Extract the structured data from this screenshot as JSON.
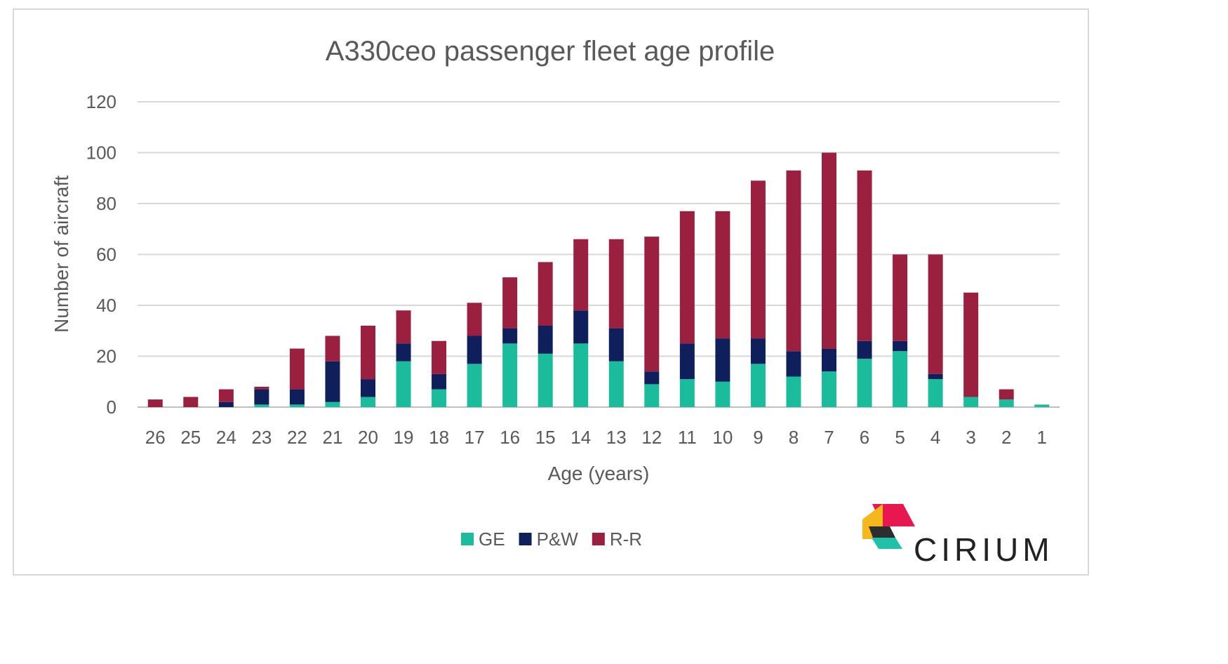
{
  "chart_data": {
    "type": "bar",
    "stacked": true,
    "title": "A330ceo passenger fleet age profile",
    "xlabel": "Age (years)",
    "ylabel": "Number of aircraft",
    "ylim": [
      0,
      120
    ],
    "yticks": [
      0,
      20,
      40,
      60,
      80,
      100,
      120
    ],
    "grid": true,
    "legend_position": "bottom",
    "categories": [
      "26",
      "25",
      "24",
      "23",
      "22",
      "21",
      "20",
      "19",
      "18",
      "17",
      "16",
      "15",
      "14",
      "13",
      "12",
      "11",
      "10",
      "9",
      "8",
      "7",
      "6",
      "5",
      "4",
      "3",
      "2",
      "1"
    ],
    "series": [
      {
        "name": "GE",
        "color": "#1abc9c",
        "values": [
          0,
          0,
          0,
          1,
          1,
          2,
          4,
          18,
          7,
          17,
          25,
          21,
          25,
          18,
          9,
          11,
          10,
          17,
          12,
          14,
          19,
          22,
          11,
          4,
          3,
          1
        ]
      },
      {
        "name": "P&W",
        "color": "#0f1f5c",
        "values": [
          0,
          0,
          2,
          6,
          6,
          16,
          7,
          7,
          6,
          11,
          6,
          11,
          13,
          13,
          5,
          14,
          17,
          10,
          10,
          9,
          7,
          4,
          2,
          0,
          0,
          0
        ]
      },
      {
        "name": "R-R",
        "color": "#9b1f3f",
        "values": [
          3,
          4,
          5,
          1,
          16,
          10,
          21,
          13,
          13,
          13,
          20,
          25,
          28,
          35,
          53,
          52,
          50,
          62,
          71,
          77,
          67,
          34,
          47,
          41,
          4,
          0
        ]
      }
    ]
  },
  "logo": {
    "text": "CIRIUM",
    "colors": {
      "pink": "#e8174f",
      "yellow": "#f4b81c",
      "teal": "#20c1a8",
      "dark": "#2d2d2d"
    }
  }
}
